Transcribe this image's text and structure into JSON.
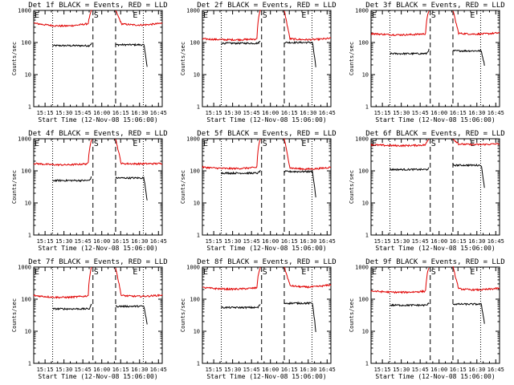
{
  "figure": {
    "panels_layout": "3x3",
    "colors": {
      "events": "#000000",
      "lld": "#e00000",
      "axes": "#000000",
      "background": "#ffffff"
    }
  },
  "chart_data": [
    {
      "type": "line",
      "title": "Det 1f BLACK = Events, RED = LLD",
      "xlabel": "Start Time (12-Nov-08 15:06:00)",
      "ylabel": "Counts/sec",
      "y_scale": "log",
      "ylim": [
        1,
        1000
      ],
      "xlim": [
        "15:06",
        "16:48"
      ],
      "x_ticks": [
        "15:15",
        "15:30",
        "15:45",
        "16:00",
        "16:15",
        "16:30",
        "16:45"
      ],
      "y_ticks": [
        "1",
        "10",
        "100",
        "1000"
      ],
      "markers": [
        {
          "label": "E",
          "x": "15:06"
        },
        {
          "label": "S",
          "x": "15:53"
        },
        {
          "label": "E",
          "x": "16:24"
        }
      ],
      "dotted_lines": [
        "15:21",
        "16:33"
      ],
      "dashed_lines": [
        "15:53",
        "16:11"
      ],
      "series": [
        {
          "name": "BLACK = Events",
          "segments": [
            {
              "start": "15:21",
              "end": "15:52",
              "level": 80,
              "rise_to": 95
            },
            {
              "start": "16:11",
              "end": "16:36",
              "level": 85,
              "rise_to": 90,
              "decay_to": 18
            }
          ]
        },
        {
          "name": "RED = LLD",
          "segments": [
            {
              "start": "15:06",
              "end": "15:52",
              "level": 400,
              "dip": 310,
              "rise_to": 1000
            },
            {
              "start": "16:11",
              "end": "16:48",
              "level": 400,
              "spike": 1000,
              "dip": 340
            }
          ]
        }
      ]
    },
    {
      "type": "line",
      "title": "Det 2f BLACK = Events, RED = LLD",
      "xlabel": "Start Time (12-Nov-08 15:06:00)",
      "ylabel": "Counts/sec",
      "y_scale": "log",
      "ylim": [
        1,
        1000
      ],
      "xlim": [
        "15:06",
        "16:48"
      ],
      "x_ticks": [
        "15:15",
        "15:30",
        "15:45",
        "16:00",
        "16:15",
        "16:30",
        "16:45"
      ],
      "y_ticks": [
        "1",
        "10",
        "100",
        "1000"
      ],
      "markers": [
        {
          "label": "E",
          "x": "15:06"
        },
        {
          "label": "S",
          "x": "15:53"
        },
        {
          "label": "E",
          "x": "16:24"
        }
      ],
      "dotted_lines": [
        "15:21",
        "16:33"
      ],
      "dashed_lines": [
        "15:53",
        "16:11"
      ],
      "series": [
        {
          "name": "BLACK = Events",
          "segments": [
            {
              "start": "15:21",
              "end": "15:52",
              "level": 95,
              "rise_to": 110
            },
            {
              "start": "16:11",
              "end": "16:36",
              "level": 100,
              "rise_to": 105,
              "decay_to": 17
            }
          ]
        },
        {
          "name": "RED = LLD",
          "segments": [
            {
              "start": "15:06",
              "end": "15:52",
              "level": 130,
              "dip": 120,
              "rise_to": 1000
            },
            {
              "start": "16:11",
              "end": "16:48",
              "level": 135,
              "spike": 1000,
              "dip": 120
            }
          ]
        }
      ]
    },
    {
      "type": "line",
      "title": "Det 3f BLACK = Events, RED = LLD",
      "xlabel": "Start Time (12-Nov-08 15:06:00)",
      "ylabel": "Counts/sec",
      "y_scale": "log",
      "ylim": [
        1,
        1000
      ],
      "xlim": [
        "15:06",
        "16:48"
      ],
      "x_ticks": [
        "15:15",
        "15:30",
        "15:45",
        "16:00",
        "16:15",
        "16:30",
        "16:45"
      ],
      "y_ticks": [
        "1",
        "10",
        "100",
        "1000"
      ],
      "markers": [
        {
          "label": "E",
          "x": "15:06"
        },
        {
          "label": "S",
          "x": "15:53"
        },
        {
          "label": "E",
          "x": "16:24"
        }
      ],
      "dotted_lines": [
        "15:21",
        "16:33"
      ],
      "dashed_lines": [
        "15:53",
        "16:11"
      ],
      "series": [
        {
          "name": "BLACK = Events",
          "segments": [
            {
              "start": "15:21",
              "end": "15:52",
              "level": 45,
              "rise_to": 60
            },
            {
              "start": "16:11",
              "end": "16:36",
              "level": 55,
              "rise_to": 60,
              "decay_to": 20
            }
          ]
        },
        {
          "name": "RED = LLD",
          "segments": [
            {
              "start": "15:06",
              "end": "15:52",
              "level": 190,
              "dip": 170,
              "rise_to": 1000
            },
            {
              "start": "16:11",
              "end": "16:48",
              "level": 200,
              "spike": 1000,
              "dip": 180
            }
          ]
        }
      ]
    },
    {
      "type": "line",
      "title": "Det 4f BLACK = Events, RED = LLD",
      "xlabel": "Start Time (12-Nov-08 15:06:00)",
      "ylabel": "Counts/sec",
      "y_scale": "log",
      "ylim": [
        1,
        1000
      ],
      "xlim": [
        "15:06",
        "16:48"
      ],
      "x_ticks": [
        "15:15",
        "15:30",
        "15:45",
        "16:00",
        "16:15",
        "16:30",
        "16:45"
      ],
      "y_ticks": [
        "1",
        "10",
        "100",
        "1000"
      ],
      "markers": [
        {
          "label": "E",
          "x": "15:06"
        },
        {
          "label": "S",
          "x": "15:53"
        },
        {
          "label": "E",
          "x": "16:24"
        }
      ],
      "dotted_lines": [
        "15:21",
        "16:33"
      ],
      "dashed_lines": [
        "15:53",
        "16:11"
      ],
      "series": [
        {
          "name": "BLACK = Events",
          "segments": [
            {
              "start": "15:21",
              "end": "15:52",
              "level": 50,
              "rise_to": 65
            },
            {
              "start": "16:11",
              "end": "16:36",
              "level": 60,
              "rise_to": 65,
              "decay_to": 12
            }
          ]
        },
        {
          "name": "RED = LLD",
          "segments": [
            {
              "start": "15:06",
              "end": "15:52",
              "level": 170,
              "dip": 150,
              "rise_to": 1000
            },
            {
              "start": "16:11",
              "end": "16:48",
              "level": 170,
              "spike": 1000,
              "dip": 165
            }
          ]
        }
      ]
    },
    {
      "type": "line",
      "title": "Det 5f BLACK = Events, RED = LLD",
      "xlabel": "Start Time (12-Nov-08 15:06:00)",
      "ylabel": "Counts/sec",
      "y_scale": "log",
      "ylim": [
        1,
        1000
      ],
      "xlim": [
        "15:06",
        "16:48"
      ],
      "x_ticks": [
        "15:15",
        "15:30",
        "15:45",
        "16:00",
        "16:15",
        "16:30",
        "16:45"
      ],
      "y_ticks": [
        "1",
        "10",
        "100",
        "1000"
      ],
      "markers": [
        {
          "label": "E",
          "x": "15:06"
        },
        {
          "label": "S",
          "x": "15:53"
        },
        {
          "label": "E",
          "x": "16:24"
        }
      ],
      "dotted_lines": [
        "15:21",
        "16:33"
      ],
      "dashed_lines": [
        "15:53",
        "16:11"
      ],
      "series": [
        {
          "name": "BLACK = Events",
          "segments": [
            {
              "start": "15:21",
              "end": "15:52",
              "level": 85,
              "rise_to": 100
            },
            {
              "start": "16:11",
              "end": "16:36",
              "level": 95,
              "rise_to": 100,
              "decay_to": 15
            }
          ]
        },
        {
          "name": "RED = LLD",
          "segments": [
            {
              "start": "15:06",
              "end": "15:52",
              "level": 130,
              "dip": 115,
              "rise_to": 1000
            },
            {
              "start": "16:11",
              "end": "16:48",
              "level": 130,
              "spike": 1000,
              "dip": 110
            }
          ]
        }
      ]
    },
    {
      "type": "line",
      "title": "Det 6f BLACK = Events, RED = LLD",
      "xlabel": "Start Time (12-Nov-08 15:06:00)",
      "ylabel": "Counts/sec",
      "y_scale": "log",
      "ylim": [
        1,
        1000
      ],
      "xlim": [
        "15:06",
        "16:48"
      ],
      "x_ticks": [
        "15:15",
        "15:30",
        "15:45",
        "16:00",
        "16:15",
        "16:30",
        "16:45"
      ],
      "y_ticks": [
        "1",
        "10",
        "100",
        "1000"
      ],
      "markers": [
        {
          "label": "E",
          "x": "15:06"
        },
        {
          "label": "S",
          "x": "15:53"
        },
        {
          "label": "E",
          "x": "16:24"
        }
      ],
      "dotted_lines": [
        "15:21",
        "16:33"
      ],
      "dashed_lines": [
        "15:53",
        "16:11"
      ],
      "series": [
        {
          "name": "BLACK = Events",
          "segments": [
            {
              "start": "15:21",
              "end": "15:52",
              "level": 110,
              "rise_to": 120
            },
            {
              "start": "16:11",
              "end": "16:36",
              "level": 150,
              "rise_to": 180,
              "decay_to": 30
            }
          ]
        },
        {
          "name": "RED = LLD",
          "segments": [
            {
              "start": "15:06",
              "end": "15:52",
              "level": 650,
              "dip": 600,
              "rise_to": 1000
            },
            {
              "start": "16:11",
              "end": "16:48",
              "level": 700,
              "spike": 1000,
              "dip": 650
            }
          ]
        }
      ]
    },
    {
      "type": "line",
      "title": "Det 7f BLACK = Events, RED = LLD",
      "xlabel": "Start Time (12-Nov-08 15:06:00)",
      "ylabel": "Counts/sec",
      "y_scale": "log",
      "ylim": [
        1,
        1000
      ],
      "xlim": [
        "15:06",
        "16:48"
      ],
      "x_ticks": [
        "15:15",
        "15:30",
        "15:45",
        "16:00",
        "16:15",
        "16:30",
        "16:45"
      ],
      "y_ticks": [
        "1",
        "10",
        "100",
        "1000"
      ],
      "markers": [
        {
          "label": "E",
          "x": "15:06"
        },
        {
          "label": "S",
          "x": "15:53"
        },
        {
          "label": "E",
          "x": "16:24"
        }
      ],
      "dotted_lines": [
        "15:21",
        "16:33"
      ],
      "dashed_lines": [
        "15:53",
        "16:11"
      ],
      "series": [
        {
          "name": "BLACK = Events",
          "segments": [
            {
              "start": "15:21",
              "end": "15:52",
              "level": 50,
              "rise_to": 70
            },
            {
              "start": "16:11",
              "end": "16:36",
              "level": 60,
              "rise_to": 70,
              "decay_to": 16
            }
          ]
        },
        {
          "name": "RED = LLD",
          "segments": [
            {
              "start": "15:06",
              "end": "15:52",
              "level": 130,
              "dip": 110,
              "rise_to": 1000
            },
            {
              "start": "16:11",
              "end": "16:48",
              "level": 135,
              "spike": 1000,
              "dip": 120
            }
          ]
        }
      ]
    },
    {
      "type": "line",
      "title": "Det 8f BLACK = Events, RED = LLD",
      "xlabel": "Start Time (12-Nov-08 15:06:00)",
      "ylabel": "Counts/sec",
      "y_scale": "log",
      "ylim": [
        1,
        1000
      ],
      "xlim": [
        "15:06",
        "16:48"
      ],
      "x_ticks": [
        "15:15",
        "15:30",
        "15:45",
        "16:00",
        "16:15",
        "16:30",
        "16:45"
      ],
      "y_ticks": [
        "1",
        "10",
        "100",
        "1000"
      ],
      "markers": [
        {
          "label": "E",
          "x": "15:06"
        },
        {
          "label": "S",
          "x": "15:53"
        },
        {
          "label": "E",
          "x": "16:24"
        }
      ],
      "dotted_lines": [
        "15:21",
        "16:33"
      ],
      "dashed_lines": [
        "15:53",
        "16:11"
      ],
      "series": [
        {
          "name": "BLACK = Events",
          "segments": [
            {
              "start": "15:21",
              "end": "15:52",
              "level": 55,
              "rise_to": 70
            },
            {
              "start": "16:11",
              "end": "16:36",
              "level": 75,
              "rise_to": 80,
              "decay_to": 10
            }
          ]
        },
        {
          "name": "RED = LLD",
          "segments": [
            {
              "start": "15:06",
              "end": "15:52",
              "level": 230,
              "dip": 200,
              "rise_to": 1000
            },
            {
              "start": "16:11",
              "end": "16:48",
              "level": 280,
              "spike": 1000,
              "dip": 230
            }
          ]
        }
      ]
    },
    {
      "type": "line",
      "title": "Det 9f BLACK = Events, RED = LLD",
      "xlabel": "Start Time (12-Nov-08 15:06:00)",
      "ylabel": "Counts/sec",
      "y_scale": "log",
      "ylim": [
        1,
        1000
      ],
      "xlim": [
        "15:06",
        "16:48"
      ],
      "x_ticks": [
        "15:15",
        "15:30",
        "15:45",
        "16:00",
        "16:15",
        "16:30",
        "16:45"
      ],
      "y_ticks": [
        "1",
        "10",
        "100",
        "1000"
      ],
      "markers": [
        {
          "label": "E",
          "x": "15:06"
        },
        {
          "label": "S",
          "x": "15:53"
        },
        {
          "label": "E",
          "x": "16:24"
        }
      ],
      "dotted_lines": [
        "15:21",
        "16:33"
      ],
      "dashed_lines": [
        "15:53",
        "16:11"
      ],
      "series": [
        {
          "name": "BLACK = Events",
          "segments": [
            {
              "start": "15:21",
              "end": "15:52",
              "level": 65,
              "rise_to": 75
            },
            {
              "start": "16:11",
              "end": "16:36",
              "level": 70,
              "rise_to": 80,
              "decay_to": 18
            }
          ]
        },
        {
          "name": "RED = LLD",
          "segments": [
            {
              "start": "15:06",
              "end": "15:52",
              "level": 180,
              "dip": 160,
              "rise_to": 1000
            },
            {
              "start": "16:11",
              "end": "16:48",
              "level": 220,
              "spike": 1000,
              "dip": 190
            }
          ]
        }
      ]
    }
  ]
}
